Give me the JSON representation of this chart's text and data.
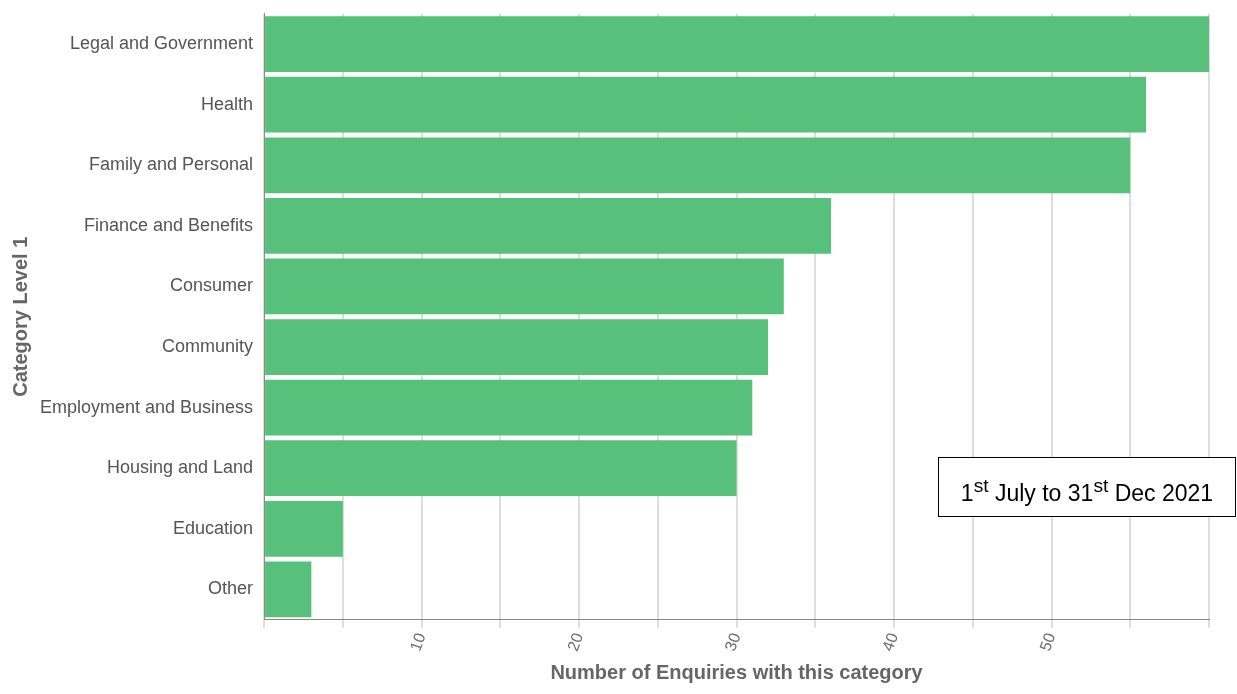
{
  "chart_data": {
    "type": "bar",
    "orientation": "horizontal",
    "xlabel": "Number of Enquiries with this category",
    "ylabel": "Category Level 1",
    "categories": [
      "Legal and Government",
      "Health",
      "Family and Personal",
      "Finance and Benefits",
      "Consumer",
      "Community",
      "Employment and Business",
      "Housing and Land",
      "Education",
      "Other"
    ],
    "values": [
      60,
      56,
      55,
      36,
      33,
      32,
      31,
      30,
      5,
      3
    ],
    "color": "#57c17b",
    "xlim": [
      0,
      60
    ],
    "xticks": [
      {
        "value": 0,
        "label": null
      },
      {
        "value": 5,
        "label": null
      },
      10,
      {
        "value": 15,
        "label": null
      },
      20,
      {
        "value": 25,
        "label": null
      },
      30,
      {
        "value": 35,
        "label": null
      },
      40,
      {
        "value": 45,
        "label": null
      },
      50,
      {
        "value": 55,
        "label": null
      },
      {
        "value": 60,
        "label": null
      }
    ],
    "grid": "x",
    "legend": false,
    "annotations": [
      "1$^{st}$ July to 31$^{st}$ Dec 2021"
    ]
  }
}
